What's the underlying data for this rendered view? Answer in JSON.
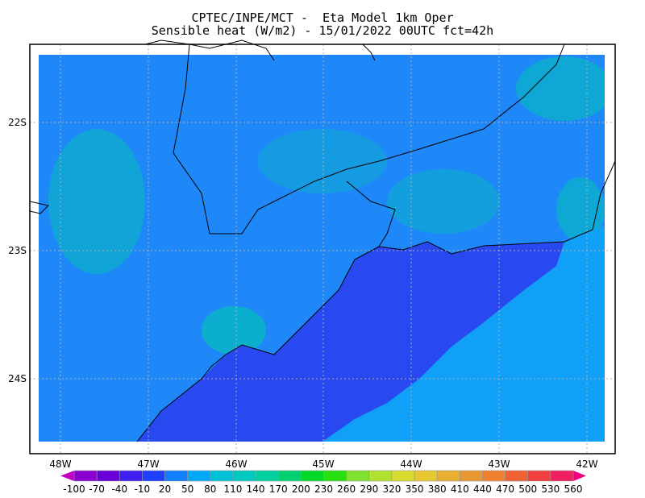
{
  "title": {
    "line1": "CPTEC/INPE/MCT -  Eta Model 1km Oper",
    "line2": "Sensible heat (W/m2) - 15/01/2022 00UTC fct=42h"
  },
  "map": {
    "lat_labels": [
      "22S",
      "23S",
      "24S"
    ],
    "lon_labels": [
      "48W",
      "47W",
      "46W",
      "45W",
      "44W",
      "43W",
      "42W"
    ],
    "land_color": "#1E88F8",
    "ocean_color": "#2848F0",
    "offshore_color": "#10A0F8",
    "highlight_color": "#00C8B0"
  },
  "colorbar": {
    "labels": [
      "-100",
      "-70",
      "-40",
      "-10",
      "20",
      "50",
      "80",
      "110",
      "140",
      "170",
      "200",
      "230",
      "260",
      "290",
      "320",
      "350",
      "380",
      "410",
      "440",
      "470",
      "500",
      "530",
      "560"
    ],
    "colors": [
      "#8C00D0",
      "#6A00D8",
      "#4020F0",
      "#2040FF",
      "#1080FF",
      "#00A8F8",
      "#00C0D8",
      "#00C8C0",
      "#00D0A0",
      "#00D070",
      "#00D828",
      "#28E010",
      "#80E030",
      "#B0E030",
      "#D8DC30",
      "#E8C830",
      "#E8B030",
      "#E89830",
      "#F08030",
      "#F06030",
      "#F04040",
      "#F02060"
    ],
    "under_color": "#C000C0",
    "over_color": "#F00080"
  }
}
